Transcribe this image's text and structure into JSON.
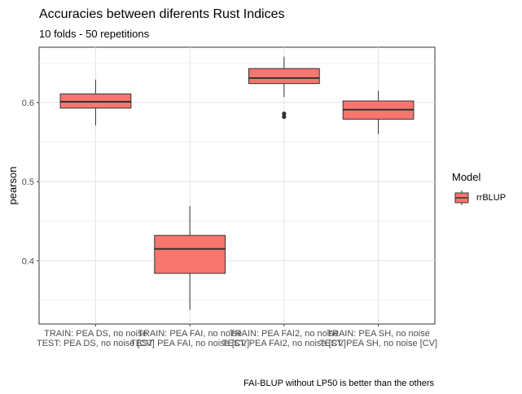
{
  "chart_data": {
    "type": "boxplot",
    "title": "Accuracies between diferents Rust Indices",
    "subtitle": "10 folds - 50 repetitions",
    "xlabel": "",
    "ylabel": "pearson",
    "caption": "FAI-BLUP without LP50 is better than the others",
    "ylim": [
      0.32,
      0.67
    ],
    "yticks": [
      0.4,
      0.5,
      0.6
    ],
    "grid": true,
    "legend": {
      "title": "Model",
      "position": "right",
      "entries": [
        {
          "name": "rrBLUP",
          "color": "#F8766D"
        }
      ]
    },
    "categories": [
      {
        "line1": "TRAIN: PEA DS, no noise",
        "line2": "TEST: PEA DS, no noise [CV]"
      },
      {
        "line1": "TRAIN: PEA FAI, no noise",
        "line2": "TEST: PEA FAI, no noise [CV]"
      },
      {
        "line1": "TRAIN: PEA FAI2, no noise",
        "line2": "TEST: PEA FAI2, no noise [CV]"
      },
      {
        "line1": "TRAIN: PEA SH, no noise",
        "line2": "TEST: PEA SH, no noise [CV]"
      }
    ],
    "series": [
      {
        "name": "rrBLUP",
        "color": "#F8766D",
        "boxes": [
          {
            "min": 0.571,
            "q1": 0.593,
            "median": 0.601,
            "q3": 0.611,
            "max": 0.629,
            "outliers": []
          },
          {
            "min": 0.338,
            "q1": 0.384,
            "median": 0.415,
            "q3": 0.432,
            "max": 0.469,
            "outliers": []
          },
          {
            "min": 0.607,
            "q1": 0.624,
            "median": 0.631,
            "q3": 0.643,
            "max": 0.658,
            "outliers": [
              0.586,
              0.582
            ]
          },
          {
            "min": 0.56,
            "q1": 0.579,
            "median": 0.591,
            "q3": 0.602,
            "max": 0.615,
            "outliers": []
          }
        ]
      }
    ]
  }
}
